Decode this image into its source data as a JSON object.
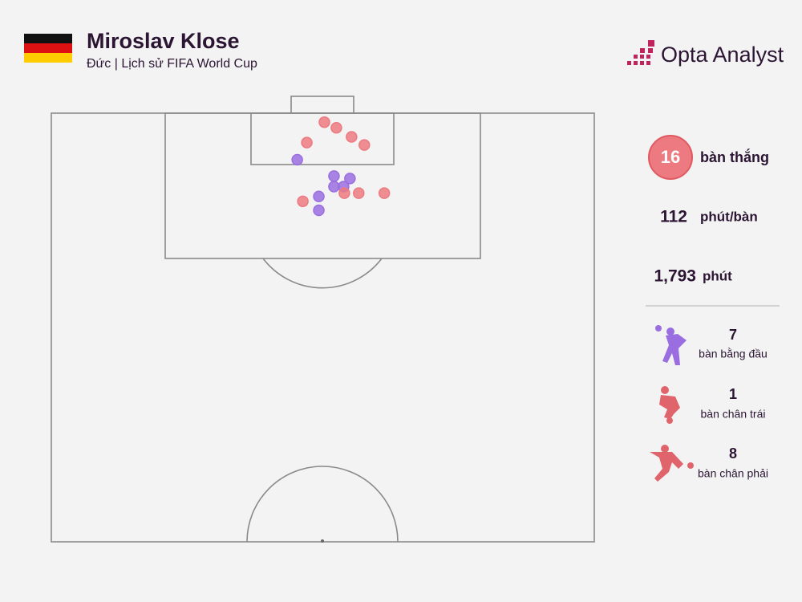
{
  "chart_data": {
    "type": "scatter",
    "title": "Miroslav Klose",
    "subtitle": "Đức | Lịch sử FIFA World Cup",
    "brand": "Opta Analyst",
    "xlim": [
      0,
      68
    ],
    "ylim": [
      0,
      52.5
    ],
    "stats": [
      {
        "value": 16,
        "label": "bàn thắng"
      },
      {
        "value": 112,
        "label": "phút/bàn"
      },
      {
        "value": {
          "value": 1793,
          "label": "1,793"
        },
        "label": "phút"
      }
    ],
    "series": [
      {
        "name": "bàn bằng đầu",
        "count": 7,
        "color": "#9a6ee0",
        "x": [
          30.8,
          35.4,
          37.4,
          35.4,
          36.6,
          33.5,
          33.5
        ],
        "values": [
          5.7,
          7.7,
          8.0,
          9.0,
          9.0,
          10.2,
          11.9
        ]
      },
      {
        "name": "bàn chân trái",
        "count": 1,
        "color": "#ec7a80",
        "x": [
          36.7
        ],
        "values": [
          9.8
        ]
      },
      {
        "name": "bàn chân phải",
        "count": 8,
        "color": "#ec7a80",
        "x": [
          34.2,
          35.7,
          37.6,
          39.2,
          32.0,
          31.5,
          38.5,
          41.7
        ],
        "values": [
          1.1,
          1.8,
          2.9,
          3.9,
          3.6,
          10.8,
          9.8,
          9.8
        ]
      }
    ]
  }
}
